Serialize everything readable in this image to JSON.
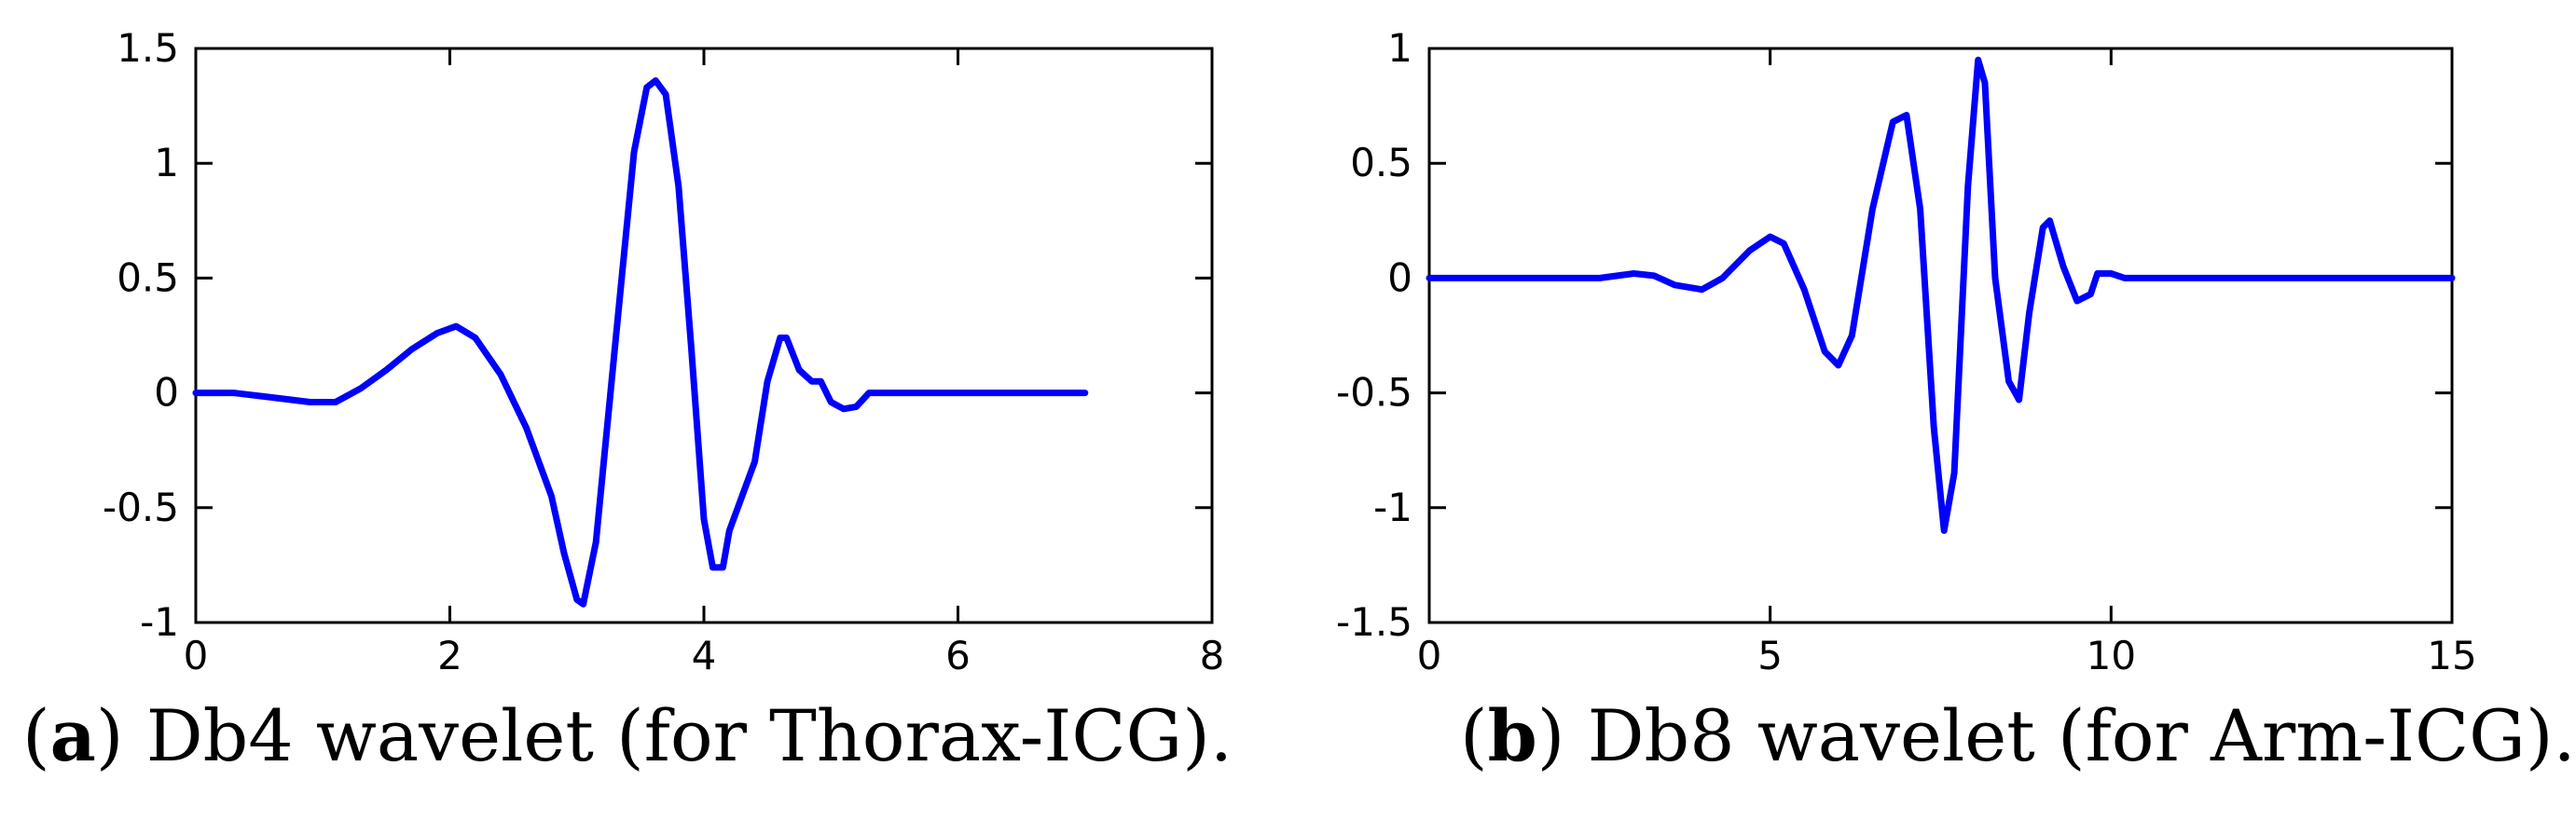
{
  "chart_data": [
    {
      "type": "line",
      "xlim": [
        0,
        8
      ],
      "ylim": [
        -1,
        1.5
      ],
      "xticks": [
        0,
        2,
        4,
        6,
        8
      ],
      "yticks": [
        1.5,
        1,
        0.5,
        0,
        -0.5,
        -1
      ],
      "xtick_labels": [
        "0",
        "2",
        "4",
        "6",
        "8"
      ],
      "ytick_labels": [
        "1.5",
        "1",
        "0.5",
        "0",
        "-0.5",
        "-1"
      ],
      "grid": false,
      "line_color": "#0000ff",
      "series": [
        {
          "x": [
            0,
            0.3,
            0.6,
            0.9,
            1.1,
            1.3,
            1.5,
            1.7,
            1.9,
            2.05,
            2.2,
            2.4,
            2.6,
            2.8,
            2.9,
            3.0,
            3.05,
            3.15,
            3.3,
            3.45,
            3.55,
            3.62,
            3.7,
            3.8,
            3.9,
            4.0,
            4.07,
            4.15,
            4.2,
            4.3,
            4.4,
            4.5,
            4.6,
            4.65,
            4.75,
            4.85,
            4.92,
            5.0,
            5.1,
            5.2,
            5.3,
            6.0,
            7.0
          ],
          "y": [
            0.0,
            0.0,
            -0.02,
            -0.04,
            -0.04,
            0.02,
            0.1,
            0.19,
            0.26,
            0.29,
            0.24,
            0.08,
            -0.15,
            -0.45,
            -0.7,
            -0.9,
            -0.92,
            -0.65,
            0.2,
            1.05,
            1.33,
            1.36,
            1.3,
            0.9,
            0.2,
            -0.55,
            -0.76,
            -0.76,
            -0.6,
            -0.45,
            -0.3,
            0.05,
            0.24,
            0.24,
            0.1,
            0.05,
            0.05,
            -0.04,
            -0.07,
            -0.06,
            0.0,
            0.0,
            0.0
          ]
        }
      ]
    },
    {
      "type": "line",
      "xlim": [
        0,
        15
      ],
      "ylim": [
        -1.5,
        1
      ],
      "xticks": [
        0,
        5,
        10,
        15
      ],
      "yticks": [
        1,
        0.5,
        0,
        -0.5,
        -1,
        -1.5
      ],
      "xtick_labels": [
        "0",
        "5",
        "10",
        "15"
      ],
      "ytick_labels": [
        "1",
        "0.5",
        "0",
        "-0.5",
        "-1",
        "-1.5"
      ],
      "grid": false,
      "line_color": "#0000ff",
      "series": [
        {
          "x": [
            0,
            2.5,
            3.0,
            3.3,
            3.6,
            4.0,
            4.3,
            4.7,
            5.0,
            5.2,
            5.5,
            5.8,
            6.0,
            6.2,
            6.5,
            6.8,
            7.0,
            7.2,
            7.4,
            7.55,
            7.7,
            7.9,
            8.05,
            8.15,
            8.3,
            8.5,
            8.65,
            8.8,
            9.0,
            9.1,
            9.3,
            9.5,
            9.7,
            9.8,
            10.0,
            10.2,
            12.0,
            15.0
          ],
          "y": [
            0.0,
            0.0,
            0.02,
            0.01,
            -0.03,
            -0.05,
            0.0,
            0.12,
            0.18,
            0.15,
            -0.05,
            -0.32,
            -0.38,
            -0.25,
            0.3,
            0.68,
            0.71,
            0.3,
            -0.65,
            -1.1,
            -0.85,
            0.4,
            0.95,
            0.85,
            0.0,
            -0.45,
            -0.53,
            -0.15,
            0.22,
            0.25,
            0.05,
            -0.1,
            -0.07,
            0.02,
            0.02,
            0.0,
            0.0,
            0.0
          ]
        }
      ]
    }
  ],
  "captions": {
    "a": {
      "letter": "a",
      "text": " Db4 wavelet (for Thorax-ICG)."
    },
    "b": {
      "letter": "b",
      "text": " Db8 wavelet (for Arm-ICG)."
    }
  }
}
